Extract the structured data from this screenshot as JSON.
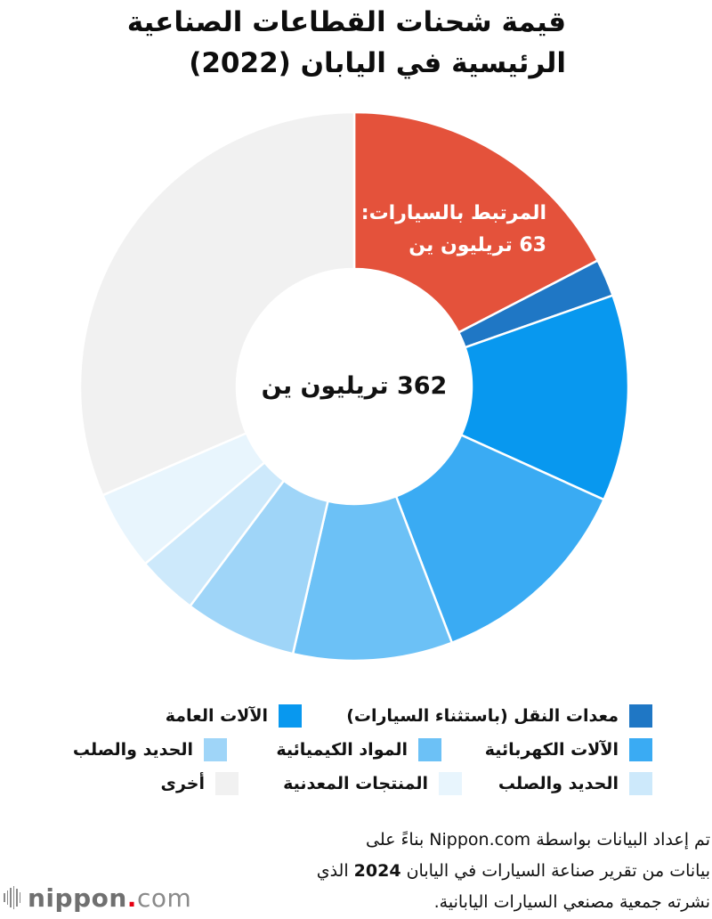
{
  "title": {
    "line1": "قيمة شحنات القطاعات الصناعية",
    "line2": "الرئيسية في اليابان (2022)"
  },
  "center_label": "362 تريليون ين",
  "highlight_label": {
    "line1": "المرتبط بالسيارات:",
    "line2": "63 تريليون ين"
  },
  "legend": [
    {
      "label": "معدات النقل (باستثناء السيارات)",
      "color": "#1f77c5"
    },
    {
      "label": "الآلات العامة",
      "color": "#0898ef"
    },
    {
      "label": "الآلات الكهربائية",
      "color": "#3aabf3"
    },
    {
      "label": "المواد الكيميائية",
      "color": "#6cc1f6"
    },
    {
      "label": "الحديد والصلب",
      "color": "#9fd5f8"
    },
    {
      "label": "الحديد والصلب",
      "color": "#cde9fb"
    },
    {
      "label": "المنتجات المعدنية",
      "color": "#e8f5fd"
    },
    {
      "label": "أخرى",
      "color": "#f1f1f1"
    }
  ],
  "footer": {
    "line1": "تم إعداد البيانات بواسطة Nippon.com بناءً على",
    "line2_a": "بيانات من تقرير صناعة السيارات في اليابان ",
    "line2_year": "2024",
    "line2_b": " الذي",
    "line3": "نشرته جمعية مصنعي السيارات اليابانية."
  },
  "logo": {
    "brand": "nippon",
    "dot": ".",
    "tld": "com"
  },
  "chart_data": {
    "type": "pie",
    "subtype": "donut",
    "title": "قيمة شحنات القطاعات الصناعية الرئيسية في اليابان (2022)",
    "total": 362,
    "unit": "تريليون ين",
    "center_label": "362 تريليون ين",
    "start_angle_deg": 0,
    "direction": "clockwise",
    "slices": [
      {
        "label": "المرتبط بالسيارات",
        "value": 63,
        "color": "#e4523b",
        "annotation": "المرتبط بالسيارات: 63 تريليون ين"
      },
      {
        "label": "معدات النقل (باستثناء السيارات)",
        "value": 8,
        "color": "#1f77c5"
      },
      {
        "label": "الآلات العامة",
        "value": 44,
        "color": "#0898ef"
      },
      {
        "label": "الآلات الكهربائية",
        "value": 45,
        "color": "#3aabf3"
      },
      {
        "label": "المواد الكيميائية",
        "value": 34,
        "color": "#6cc1f6"
      },
      {
        "label": "الحديد والصلب",
        "value": 24,
        "color": "#9fd5f8"
      },
      {
        "label": "الحديد والصلب",
        "value": 13,
        "color": "#cde9fb"
      },
      {
        "label": "المنتجات المعدنية",
        "value": 17,
        "color": "#e8f5fd"
      },
      {
        "label": "أخرى",
        "value": 114,
        "color": "#f1f1f1"
      }
    ],
    "legend_position": "bottom",
    "source": "تم إعداد البيانات بواسطة Nippon.com بناءً على بيانات من تقرير صناعة السيارات في اليابان 2024 الذي نشرته جمعية مصنعي السيارات اليابانية."
  }
}
